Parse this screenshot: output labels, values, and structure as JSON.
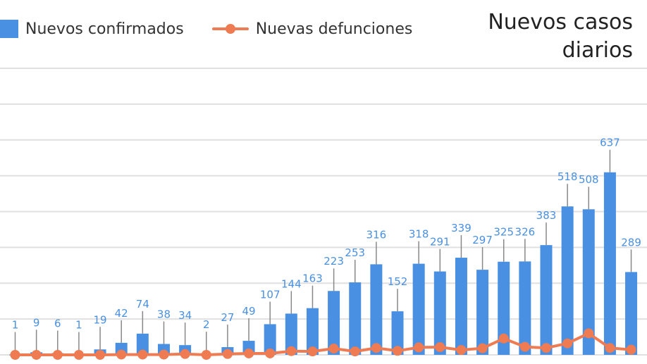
{
  "chart_data": {
    "type": "bar",
    "title_line1": "Nuevos casos",
    "title_line2": "diarios",
    "legend": {
      "bars_label": "Nuevos confirmados",
      "line_label": "Nuevas defunciones"
    },
    "colors": {
      "bars": "#4a90e2",
      "line": "#ee7b52",
      "data_label": "#4a90e2",
      "grid": "#e0e0e0",
      "error_bar": "#888888"
    },
    "grid": true,
    "legend_position": "top-left",
    "ylim": [
      0,
      1000
    ],
    "series": [
      {
        "name": "Nuevos confirmados",
        "type": "bar",
        "values": [
          1,
          9,
          6,
          1,
          19,
          42,
          74,
          38,
          34,
          2,
          27,
          49,
          107,
          144,
          163,
          223,
          253,
          316,
          152,
          318,
          291,
          339,
          297,
          325,
          326,
          383,
          518,
          508,
          637,
          289
        ],
        "labels": [
          "1",
          "9",
          "6",
          "1",
          "19",
          "42",
          "74",
          "38",
          "34",
          "2",
          "27",
          "49",
          "107",
          "144",
          "163",
          "223",
          "253",
          "316",
          "152",
          "318",
          "291",
          "339",
          "297",
          "325",
          "326",
          "383",
          "518",
          "508",
          "637",
          "289"
        ]
      },
      {
        "name": "Nuevas defunciones",
        "type": "line",
        "values": [
          0,
          0,
          0,
          0,
          0,
          1,
          1,
          1,
          3,
          0,
          3,
          5,
          5,
          13,
          12,
          22,
          12,
          24,
          14,
          26,
          27,
          17,
          23,
          57,
          28,
          24,
          40,
          75,
          24,
          18
        ]
      }
    ]
  }
}
